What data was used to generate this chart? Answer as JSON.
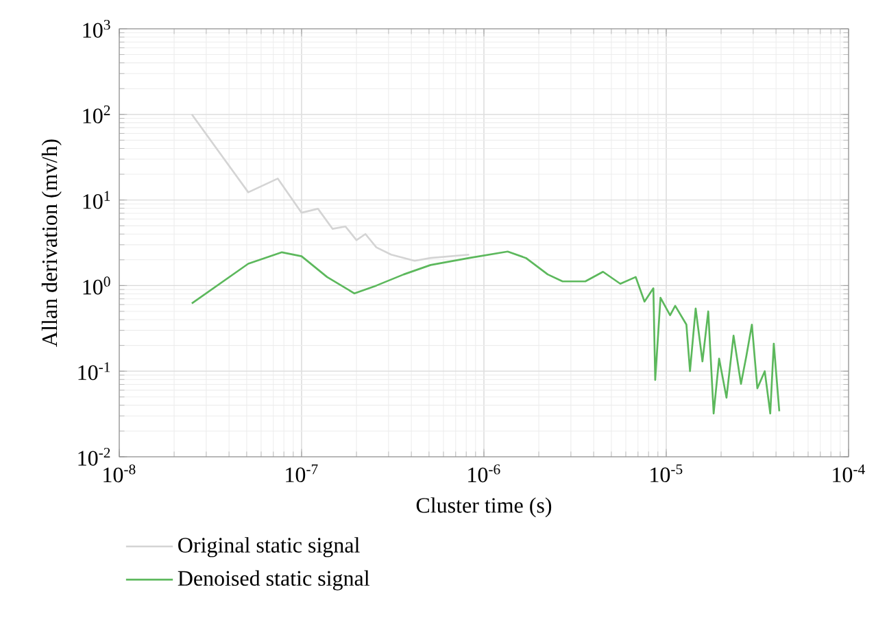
{
  "chart_data": {
    "type": "line",
    "xlabel": "Cluster time (s)",
    "ylabel": "Allan derivation (mv/h)",
    "log": "xy",
    "grid": true,
    "legend": "bottom left",
    "line_style": "solid",
    "marker": "none",
    "xlim": [
      1e-08,
      0.0001
    ],
    "ylim": [
      0.01,
      1000
    ],
    "xticks": [
      {
        "value": 1e-08,
        "label": "10$^{-8}$"
      },
      {
        "value": 1e-07,
        "label": "10$^{-7}$"
      },
      {
        "value": 1e-06,
        "label": "10$^{-6}$"
      },
      {
        "value": 1e-05,
        "label": "10$^{-5}$"
      },
      {
        "value": 0.0001,
        "label": "10$^{-4}$"
      }
    ],
    "yticks": [
      {
        "value": 0.01,
        "label": "10$^{-2}$"
      },
      {
        "value": 0.1,
        "label": "10$^{-1}$"
      },
      {
        "value": 1,
        "label": "10$^{0}$"
      },
      {
        "value": 10,
        "label": "10$^{1}$"
      },
      {
        "value": 100,
        "label": "10$^{2}$"
      },
      {
        "value": 1000,
        "label": "10$^{3}$"
      }
    ],
    "series": [
      {
        "name": "Original static signal",
        "color": "#d4d4d4",
        "x": [
          2.5e-08,
          5.1e-08,
          7.4e-08,
          1e-07,
          1.23e-07,
          1.48e-07,
          1.74e-07,
          2e-07,
          2.24e-07,
          2.57e-07,
          3.1e-07,
          4.17e-07,
          5.1e-07,
          8.3e-07
        ],
        "values": [
          100,
          12.3,
          17.8,
          7.1,
          7.9,
          4.6,
          4.9,
          3.4,
          4.0,
          2.8,
          2.3,
          1.95,
          2.1,
          2.3
        ]
      },
      {
        "name": "Denoised static signal",
        "color": "#5cb85c",
        "x": [
          2.5e-08,
          5.1e-08,
          7.8e-08,
          1e-07,
          1.38e-07,
          1.95e-07,
          2.57e-07,
          3.63e-07,
          5.1e-07,
          8.3e-07,
          1.35e-06,
          1.7e-06,
          2.24e-06,
          2.7e-06,
          3.6e-06,
          4.5e-06,
          5.6e-06,
          6.8e-06,
          7.6e-06,
          8.5e-06,
          8.7e-06,
          9.3e-06,
          1.05e-05,
          1.12e-05,
          1.29e-05,
          1.35e-05,
          1.45e-05,
          1.58e-05,
          1.7e-05,
          1.82e-05,
          1.95e-05,
          2.14e-05,
          2.34e-05,
          2.57e-05,
          2.75e-05,
          2.95e-05,
          3.16e-05,
          3.47e-05,
          3.72e-05,
          3.89e-05,
          4.17e-05
        ],
        "values": [
          0.62,
          1.8,
          2.45,
          2.2,
          1.26,
          0.81,
          1.0,
          1.35,
          1.74,
          2.1,
          2.5,
          2.1,
          1.35,
          1.12,
          1.12,
          1.45,
          1.05,
          1.26,
          0.65,
          0.93,
          0.079,
          0.72,
          0.45,
          0.58,
          0.35,
          0.1,
          0.54,
          0.13,
          0.5,
          0.032,
          0.14,
          0.049,
          0.26,
          0.071,
          0.15,
          0.35,
          0.063,
          0.1,
          0.032,
          0.21,
          0.034
        ]
      }
    ]
  }
}
